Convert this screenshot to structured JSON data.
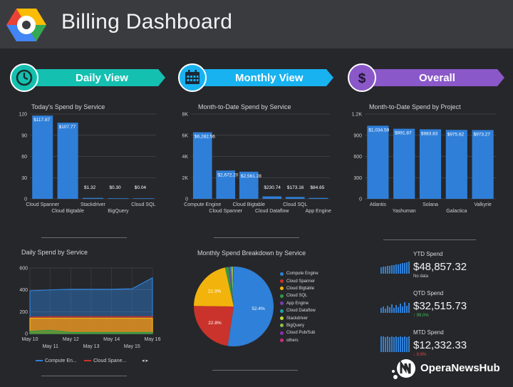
{
  "header": {
    "title": "Billing Dashboard",
    "logo_icon": "google-cloud-logo-icon"
  },
  "sections": [
    {
      "label": "Daily View",
      "icon": "clock-icon",
      "color": "#14c0b0"
    },
    {
      "label": "Monthly View",
      "icon": "calendar-icon",
      "color": "#18b2f0"
    },
    {
      "label": "Overall",
      "icon": "dollar-icon",
      "color": "#8a58c8"
    }
  ],
  "daily_chart": {
    "title": "Today's Spend by Service",
    "y_ticks": [
      "120",
      "90",
      "60",
      "30",
      "0"
    ],
    "value_labels": [
      "$117.87",
      "$107.77",
      "$1.32",
      "$0.30",
      "$0.04"
    ],
    "x_labels_top": [
      "Cloud Spanner",
      "Stackdriver",
      "Cloud SQL"
    ],
    "x_labels_bottom": [
      "Cloud Bigtable",
      "BigQuery"
    ]
  },
  "monthly_chart": {
    "title": "Month-to-Date Spend by Service",
    "y_ticks": [
      "8K",
      "6K",
      "4K",
      "2K",
      "0"
    ],
    "value_labels": [
      "$6,282.56",
      "$2,672.20",
      "$2,561.28",
      "$230.74",
      "$173.16",
      "$84.65"
    ],
    "x_labels_top": [
      "Compute Engine",
      "Cloud Bigtable",
      "Cloud SQL"
    ],
    "x_labels_bottom": [
      "Cloud Spanner",
      "Cloud Dataflow",
      "App Engine"
    ]
  },
  "overall_chart": {
    "title": "Month-to-Date Spend by Project",
    "y_ticks": [
      "1.2K",
      "900",
      "600",
      "300",
      "0"
    ],
    "value_labels": [
      "$1,034.59",
      "$991.87",
      "$983.83",
      "$975.62",
      "$973.27"
    ],
    "x_labels_top": [
      "Atlantis",
      "Solana",
      "Valkyrie"
    ],
    "x_labels_bottom": [
      "Yashuman",
      "Galactica"
    ]
  },
  "daily_spend": {
    "title": "Daily Spend by Service",
    "y_ticks": [
      "600",
      "400",
      "200",
      "0"
    ],
    "x_labels_top": [
      "May 10",
      "May 12",
      "May 14",
      "May 16"
    ],
    "x_labels_bottom": [
      "May 11",
      "May 13",
      "May 15"
    ],
    "legend": [
      "Compute En...",
      "Cloud Spane..."
    ],
    "pager": "◂ ▸"
  },
  "breakdown": {
    "title": "Monthly Spend Breakdown by Service",
    "slice_labels": [
      "52.4%",
      "22.8%",
      "21.3%"
    ],
    "legend": [
      {
        "label": "Compute Engine",
        "color": "#2f80d8"
      },
      {
        "label": "Cloud Spanner",
        "color": "#c9332b"
      },
      {
        "label": "Cloud Bigtable",
        "color": "#f2b40c"
      },
      {
        "label": "Cloud SQL",
        "color": "#2e9a44"
      },
      {
        "label": "App Engine",
        "color": "#7a3fb0"
      },
      {
        "label": "Cloud Dataflow",
        "color": "#1ba3a3"
      },
      {
        "label": "Stackdriver",
        "color": "#c2dc3a"
      },
      {
        "label": "BigQuery",
        "color": "#8bc34a"
      },
      {
        "label": "Cloud Pub/Sub",
        "color": "#8e2fb3"
      },
      {
        "label": "others",
        "color": "#d02c7d"
      }
    ]
  },
  "metrics": [
    {
      "label": "YTD Spend",
      "value": "$48,857.32",
      "sub": "No data",
      "sub_color": "#cfcfcf"
    },
    {
      "label": "QTD Spend",
      "value": "$32,515.73",
      "sub": "↑ 99.0%",
      "sub_color": "#3fbf57"
    },
    {
      "label": "MTD Spend",
      "value": "$12,332.33",
      "sub": "↓ 9.9%",
      "sub_color": "#e04848"
    }
  ],
  "watermark": {
    "text": "OperaNewsHub"
  },
  "chart_data": [
    {
      "type": "bar",
      "title": "Today's Spend by Service",
      "categories": [
        "Cloud Spanner",
        "Cloud Bigtable",
        "Stackdriver",
        "BigQuery",
        "Cloud SQL"
      ],
      "values": [
        117.87,
        107.77,
        1.32,
        0.3,
        0.04
      ],
      "ylim": [
        0,
        120
      ],
      "color": "#2f7fd9"
    },
    {
      "type": "bar",
      "title": "Month-to-Date Spend by Service",
      "categories": [
        "Compute Engine",
        "Cloud Spanner",
        "Cloud Bigtable",
        "Cloud Dataflow",
        "Cloud SQL",
        "App Engine"
      ],
      "values": [
        6282.56,
        2672.2,
        2561.28,
        230.74,
        173.16,
        84.65
      ],
      "ylim": [
        0,
        8000
      ],
      "color": "#2f7fd9"
    },
    {
      "type": "bar",
      "title": "Month-to-Date Spend by Project",
      "categories": [
        "Atlantis",
        "Yashuman",
        "Solana",
        "Galactica",
        "Valkyrie"
      ],
      "values": [
        1034.59,
        991.87,
        983.83,
        975.62,
        973.27
      ],
      "ylim": [
        0,
        1200
      ],
      "color": "#2f7fd9"
    },
    {
      "type": "area",
      "title": "Daily Spend by Service",
      "x": [
        "May 10",
        "May 11",
        "May 12",
        "May 13",
        "May 14",
        "May 15",
        "May 16"
      ],
      "ylim": [
        0,
        600
      ],
      "series": [
        {
          "name": "Compute En...",
          "color": "#2f80d8",
          "values": [
            390,
            400,
            405,
            405,
            405,
            410,
            510
          ]
        },
        {
          "name": "Cloud Spane...",
          "color": "#c9332b",
          "values": [
            150,
            155,
            155,
            155,
            155,
            155,
            155
          ]
        },
        {
          "color": "#f2b40c",
          "values": [
            140,
            140,
            140,
            140,
            140,
            140,
            140
          ]
        },
        {
          "color": "#2e9a44",
          "values": [
            20,
            30,
            10,
            10,
            10,
            10,
            10
          ]
        }
      ]
    },
    {
      "type": "pie",
      "title": "Monthly Spend Breakdown by Service",
      "categories": [
        "Compute Engine",
        "Cloud Spanner",
        "Cloud Bigtable",
        "Cloud SQL",
        "App Engine",
        "Cloud Dataflow",
        "Stackdriver",
        "BigQuery",
        "Cloud Pub/Sub",
        "others"
      ],
      "values": [
        52.4,
        22.8,
        21.3,
        1.4,
        0.7,
        0.6,
        0.3,
        0.2,
        0.2,
        0.1
      ]
    }
  ]
}
